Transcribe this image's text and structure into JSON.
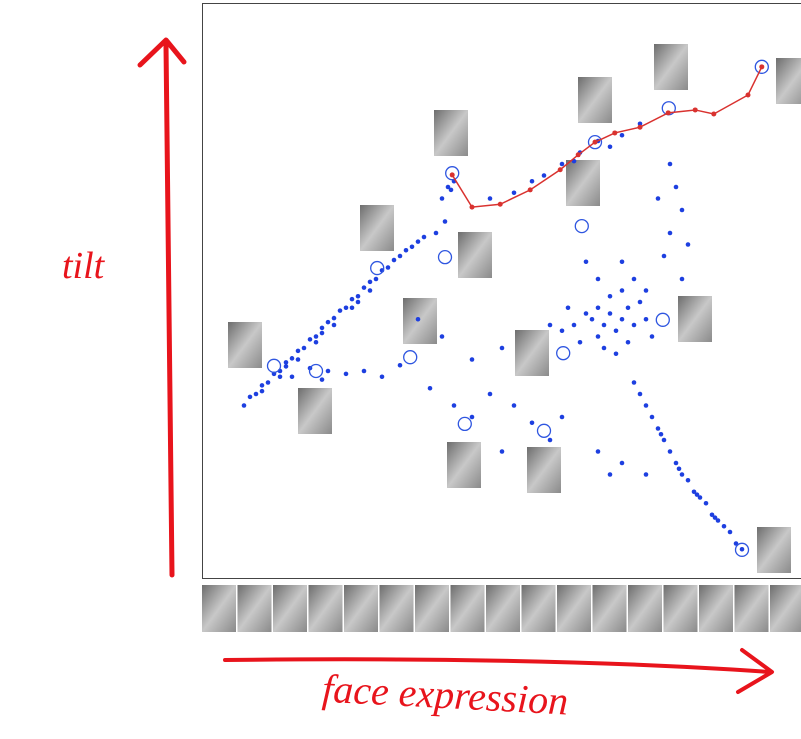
{
  "chart_data": {
    "type": "scatter",
    "y_label": "tilt",
    "x_label": "face expression",
    "xlim": [
      0,
      100
    ],
    "ylim": [
      0,
      100
    ],
    "series": [
      {
        "marker": "dot",
        "color": "#1d3fe0",
        "x": [
          7,
          8,
          9,
          10,
          11,
          12,
          13,
          14,
          15,
          16,
          17,
          18,
          19,
          20,
          21,
          22,
          23,
          24,
          25,
          26,
          27,
          28,
          29,
          30,
          31,
          32,
          33,
          34,
          35,
          36,
          37,
          39,
          10,
          13,
          16,
          19,
          22,
          25,
          28,
          14,
          20,
          26,
          40,
          41,
          42,
          41.5,
          40.5,
          15,
          18,
          21,
          24,
          27,
          30,
          33,
          20,
          36,
          40,
          45,
          50,
          38,
          42,
          45,
          48,
          52,
          55,
          58,
          50,
          60,
          48,
          52,
          55,
          57,
          60,
          63,
          66,
          70,
          73,
          68,
          62,
          78,
          79,
          80,
          78,
          77,
          80,
          76,
          81,
          65,
          66,
          67,
          68,
          69,
          70,
          71,
          72,
          66,
          64,
          62,
          68,
          70,
          73,
          74,
          67,
          69,
          71,
          63,
          60,
          58,
          75,
          72,
          66,
          64,
          70,
          74,
          61,
          72,
          73,
          74,
          75,
          76,
          77,
          78,
          79,
          80,
          81,
          82,
          83,
          84,
          85,
          86,
          87,
          88,
          89,
          90,
          76.5,
          79.5,
          82.5,
          85.5,
          70,
          68,
          74,
          66
        ],
        "y": [
          30,
          31.5,
          32,
          33.5,
          34,
          35.5,
          36,
          37.5,
          38.2,
          39.5,
          40,
          41.5,
          42,
          43.5,
          44.5,
          45.2,
          46.5,
          47,
          48.5,
          49,
          50.5,
          51.5,
          52,
          53.5,
          54,
          55.3,
          56,
          57,
          57.6,
          58.5,
          59.3,
          60,
          32.5,
          35,
          38,
          41,
          44,
          47,
          50,
          36.8,
          42.6,
          48,
          66,
          68,
          69,
          67.5,
          62,
          35,
          36.5,
          36,
          35.5,
          36,
          35,
          37,
          34.5,
          45,
          42,
          38,
          40,
          33,
          30,
          28,
          32,
          30,
          27,
          24,
          22,
          28,
          66,
          67,
          69,
          70,
          72,
          74,
          76,
          77,
          79,
          75,
          72.5,
          72,
          68,
          64,
          60,
          56,
          52,
          66,
          58,
          45,
          47,
          44,
          46,
          43,
          45,
          47,
          44,
          42,
          46,
          44,
          49,
          50,
          48,
          45,
          40,
          39,
          41,
          41,
          43,
          44,
          42,
          52,
          52,
          55,
          55,
          50,
          47,
          34,
          32,
          30,
          28,
          26,
          24,
          22,
          20,
          18,
          17,
          15,
          14,
          13,
          11,
          10,
          9,
          8,
          6,
          5,
          25,
          19,
          14.5,
          10.5,
          20,
          18,
          18,
          22
        ]
      },
      {
        "marker": "ring",
        "color": "#2f56e0",
        "x": [
          41.7,
          65.5,
          77.8,
          93.3,
          63.3,
          40.5,
          29.2,
          12.0,
          19.0,
          34.7,
          76.8,
          60.2,
          43.8,
          57.0,
          90.0
        ],
        "y": [
          70.4,
          75.8,
          81.7,
          88.9,
          61.2,
          55.8,
          53.9,
          36.9,
          36.0,
          38.4,
          44.9,
          39.1,
          26.8,
          25.6,
          4.9
        ]
      },
      {
        "marker": "line",
        "color": "#d9322f",
        "x": [
          41.7,
          45.0,
          49.7,
          54.7,
          59.7,
          62.7,
          65.5,
          68.8,
          73.0,
          77.7,
          82.2,
          85.3,
          91.0,
          93.3
        ],
        "y": [
          70.1,
          64.5,
          65.0,
          67.5,
          71.0,
          73.6,
          75.8,
          77.4,
          78.4,
          80.9,
          81.4,
          80.7,
          84.0,
          88.9
        ]
      }
    ]
  }
}
